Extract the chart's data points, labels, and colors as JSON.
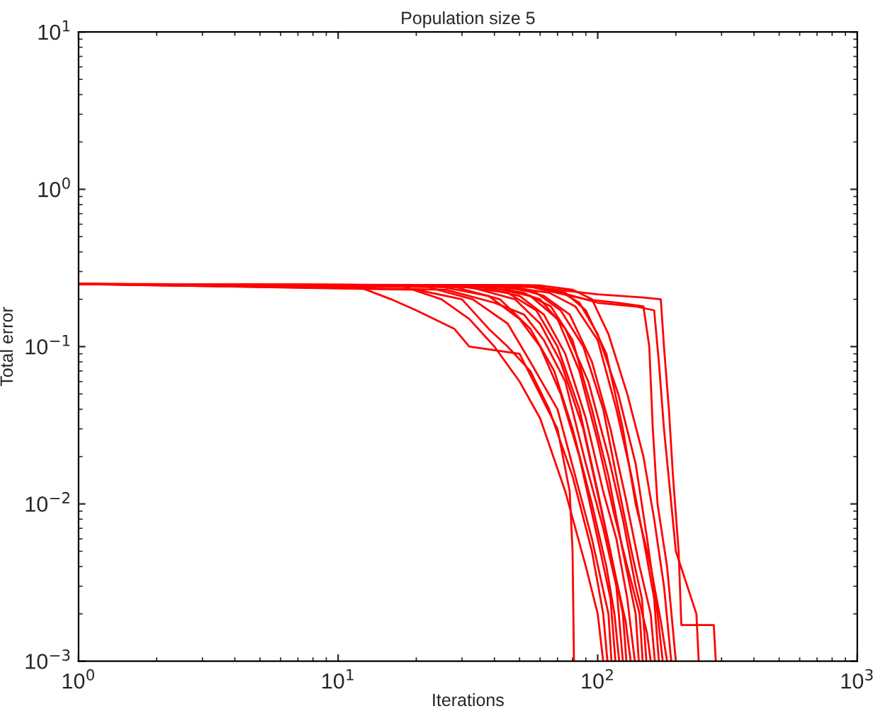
{
  "chart_data": {
    "type": "line",
    "title": "Population size 5",
    "xlabel": "Iterations",
    "ylabel": "Total error",
    "log": "xy",
    "grid": false,
    "legend": false,
    "marker": "none",
    "line_style": "solid",
    "xlim": [
      1,
      1000
    ],
    "ylim": [
      0.001,
      10
    ],
    "xticks": [
      {
        "value": 1,
        "label": "10$^{0}$"
      },
      {
        "value": 10,
        "label": "10$^{1}$"
      },
      {
        "value": 100,
        "label": "10$^{2}$"
      },
      {
        "value": 1000,
        "label": "10$^{3}$"
      }
    ],
    "yticks": [
      {
        "value": 0.001,
        "label": "10$^{−3}$"
      },
      {
        "value": 0.01,
        "label": "10$^{−2}$"
      },
      {
        "value": 0.1,
        "label": "10$^{−1}$"
      },
      {
        "value": 1,
        "label": "10$^{0}$"
      },
      {
        "value": 10,
        "label": "10$^{1}$"
      }
    ],
    "series": [
      {
        "color": "#ff0000",
        "x": [
          1,
          12,
          16,
          20,
          28,
          32,
          50,
          70,
          78,
          80,
          81
        ],
        "values": [
          0.25,
          0.24,
          0.2,
          0.17,
          0.13,
          0.1,
          0.09,
          0.03,
          0.012,
          0.005,
          0.001
        ]
      },
      {
        "color": "#ff0000",
        "x": [
          1,
          18,
          25,
          32,
          40,
          50,
          60,
          75,
          90,
          100,
          105
        ],
        "values": [
          0.25,
          0.24,
          0.2,
          0.15,
          0.1,
          0.06,
          0.035,
          0.012,
          0.004,
          0.002,
          0.001
        ]
      },
      {
        "color": "#ff0000",
        "x": [
          1,
          20,
          30,
          38,
          45,
          55,
          65,
          80,
          95,
          105,
          109
        ],
        "values": [
          0.25,
          0.23,
          0.2,
          0.13,
          0.1,
          0.07,
          0.04,
          0.015,
          0.005,
          0.002,
          0.001
        ]
      },
      {
        "color": "#ff0000",
        "x": [
          1,
          22,
          33,
          45,
          55,
          70,
          85,
          95,
          110,
          113
        ],
        "values": [
          0.25,
          0.24,
          0.2,
          0.14,
          0.08,
          0.04,
          0.012,
          0.006,
          0.002,
          0.001
        ]
      },
      {
        "color": "#ff0000",
        "x": [
          1,
          25,
          38,
          50,
          60,
          72,
          85,
          100,
          112,
          117
        ],
        "values": [
          0.25,
          0.24,
          0.21,
          0.15,
          0.1,
          0.05,
          0.02,
          0.006,
          0.0025,
          0.001
        ]
      },
      {
        "color": "#ff0000",
        "x": [
          1,
          28,
          42,
          55,
          68,
          80,
          95,
          108,
          116,
          121
        ],
        "values": [
          0.25,
          0.24,
          0.2,
          0.13,
          0.07,
          0.03,
          0.01,
          0.004,
          0.002,
          0.001
        ]
      },
      {
        "color": "#ff0000",
        "x": [
          1,
          26,
          40,
          52,
          62,
          75,
          90,
          105,
          118,
          125
        ],
        "values": [
          0.25,
          0.23,
          0.19,
          0.16,
          0.11,
          0.06,
          0.018,
          0.007,
          0.003,
          0.001
        ]
      },
      {
        "color": "#ff0000",
        "x": [
          1,
          30,
          45,
          58,
          70,
          85,
          100,
          112,
          125,
          129
        ],
        "values": [
          0.25,
          0.24,
          0.22,
          0.17,
          0.1,
          0.04,
          0.012,
          0.005,
          0.002,
          0.001
        ]
      },
      {
        "color": "#ff0000",
        "x": [
          1,
          32,
          48,
          60,
          72,
          88,
          102,
          115,
          128,
          134
        ],
        "values": [
          0.25,
          0.24,
          0.2,
          0.14,
          0.08,
          0.03,
          0.01,
          0.004,
          0.0018,
          0.001
        ]
      },
      {
        "color": "#ff0000",
        "x": [
          1,
          35,
          50,
          62,
          75,
          90,
          105,
          118,
          130,
          139
        ],
        "values": [
          0.25,
          0.24,
          0.21,
          0.16,
          0.09,
          0.035,
          0.012,
          0.006,
          0.0025,
          0.001
        ]
      },
      {
        "color": "#ff0000",
        "x": [
          1,
          36,
          52,
          66,
          80,
          95,
          110,
          125,
          140,
          144
        ],
        "values": [
          0.25,
          0.24,
          0.22,
          0.18,
          0.11,
          0.04,
          0.015,
          0.005,
          0.002,
          0.001
        ]
      },
      {
        "color": "#ff0000",
        "x": [
          1,
          38,
          55,
          70,
          85,
          100,
          115,
          130,
          145,
          149
        ],
        "values": [
          0.25,
          0.24,
          0.21,
          0.15,
          0.07,
          0.025,
          0.009,
          0.004,
          0.002,
          0.001
        ]
      },
      {
        "color": "#ff0000",
        "x": [
          1,
          40,
          58,
          72,
          88,
          105,
          120,
          135,
          148,
          154
        ],
        "values": [
          0.25,
          0.245,
          0.22,
          0.17,
          0.1,
          0.04,
          0.013,
          0.005,
          0.0025,
          0.001
        ]
      },
      {
        "color": "#ff0000",
        "x": [
          1,
          42,
          60,
          75,
          92,
          110,
          125,
          140,
          155,
          160
        ],
        "values": [
          0.25,
          0.24,
          0.2,
          0.13,
          0.06,
          0.02,
          0.008,
          0.003,
          0.0015,
          0.001
        ]
      },
      {
        "color": "#ff0000",
        "x": [
          1,
          45,
          62,
          78,
          95,
          112,
          128,
          145,
          160,
          166
        ],
        "values": [
          0.25,
          0.245,
          0.21,
          0.16,
          0.08,
          0.03,
          0.011,
          0.004,
          0.002,
          0.001
        ]
      },
      {
        "color": "#ff0000",
        "x": [
          1,
          45,
          65,
          82,
          100,
          118,
          135,
          150,
          165,
          172
        ],
        "values": [
          0.25,
          0.24,
          0.22,
          0.18,
          0.11,
          0.04,
          0.015,
          0.006,
          0.0025,
          0.001
        ]
      },
      {
        "color": "#ff0000",
        "x": [
          1,
          50,
          70,
          85,
          100,
          120,
          140,
          155,
          170,
          178
        ],
        "values": [
          0.25,
          0.245,
          0.23,
          0.19,
          0.12,
          0.05,
          0.018,
          0.006,
          0.002,
          0.001
        ]
      },
      {
        "color": "#ff0000",
        "x": [
          1,
          55,
          75,
          90,
          108,
          125,
          140,
          160,
          175,
          185
        ],
        "values": [
          0.25,
          0.245,
          0.22,
          0.17,
          0.09,
          0.03,
          0.01,
          0.004,
          0.0018,
          0.001
        ]
      },
      {
        "color": "#ff0000",
        "x": [
          1,
          60,
          80,
          95,
          110,
          130,
          150,
          165,
          180,
          192
        ],
        "values": [
          0.25,
          0.245,
          0.23,
          0.2,
          0.12,
          0.05,
          0.02,
          0.008,
          0.003,
          0.001
        ]
      },
      {
        "color": "#ff0000",
        "x": [
          1,
          55,
          90,
          120,
          150,
          158,
          163,
          170,
          185,
          200
        ],
        "values": [
          0.25,
          0.24,
          0.2,
          0.19,
          0.18,
          0.1,
          0.03,
          0.01,
          0.004,
          0.001
        ]
      },
      {
        "color": "#ff0000",
        "x": [
          1,
          60,
          100,
          140,
          165,
          172,
          180,
          190,
          200,
          240,
          245
        ],
        "values": [
          0.25,
          0.24,
          0.19,
          0.18,
          0.17,
          0.08,
          0.03,
          0.012,
          0.005,
          0.002,
          0.001
        ]
      },
      {
        "color": "#ff0000",
        "x": [
          1,
          50,
          100,
          150,
          175,
          180,
          188,
          195,
          205,
          210,
          280,
          285
        ],
        "values": [
          0.25,
          0.245,
          0.215,
          0.205,
          0.2,
          0.1,
          0.04,
          0.015,
          0.005,
          0.0017,
          0.0017,
          0.001
        ]
      }
    ]
  }
}
